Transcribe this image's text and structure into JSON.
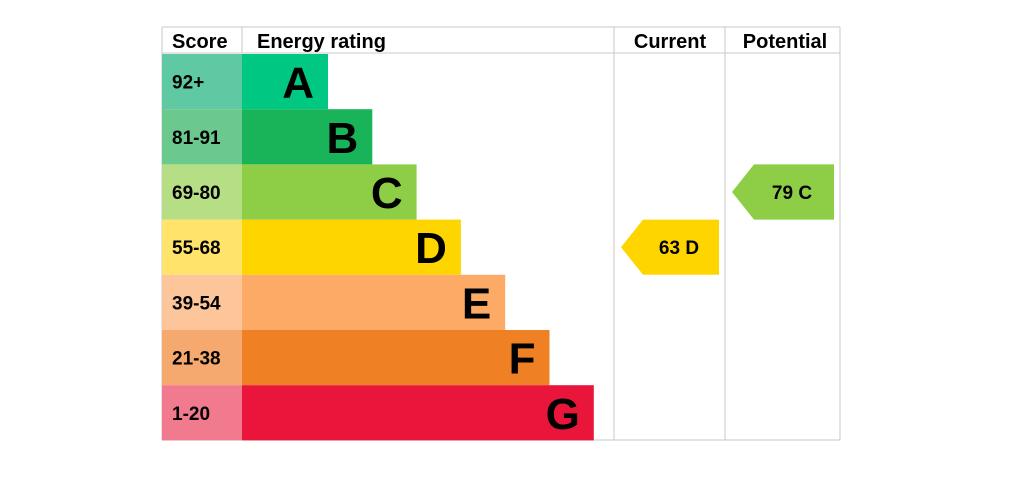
{
  "chart_data": {
    "type": "bar",
    "headers": {
      "score": "Score",
      "energy_rating": "Energy rating",
      "current": "Current",
      "potential": "Potential"
    },
    "bands": [
      {
        "letter": "A",
        "range": "92+",
        "color": "#00c781",
        "score_color": "#5fc9a4"
      },
      {
        "letter": "B",
        "range": "81-91",
        "color": "#19b459",
        "score_color": "#6cc98d"
      },
      {
        "letter": "C",
        "range": "69-80",
        "color": "#8dce46",
        "score_color": "#b6df85"
      },
      {
        "letter": "D",
        "range": "55-68",
        "color": "#ffd500",
        "score_color": "#ffe36b"
      },
      {
        "letter": "E",
        "range": "39-54",
        "color": "#fcaa65",
        "score_color": "#fdc69a"
      },
      {
        "letter": "F",
        "range": "21-38",
        "color": "#ef8023",
        "score_color": "#f5a96e"
      },
      {
        "letter": "G",
        "range": "1-20",
        "color": "#e9153b",
        "score_color": "#f27a8e"
      }
    ],
    "current": {
      "value": 63,
      "letter": "D",
      "label": "63  D",
      "color": "#ffd500"
    },
    "potential": {
      "value": 79,
      "letter": "C",
      "label": "79  C",
      "color": "#8dce46"
    }
  }
}
